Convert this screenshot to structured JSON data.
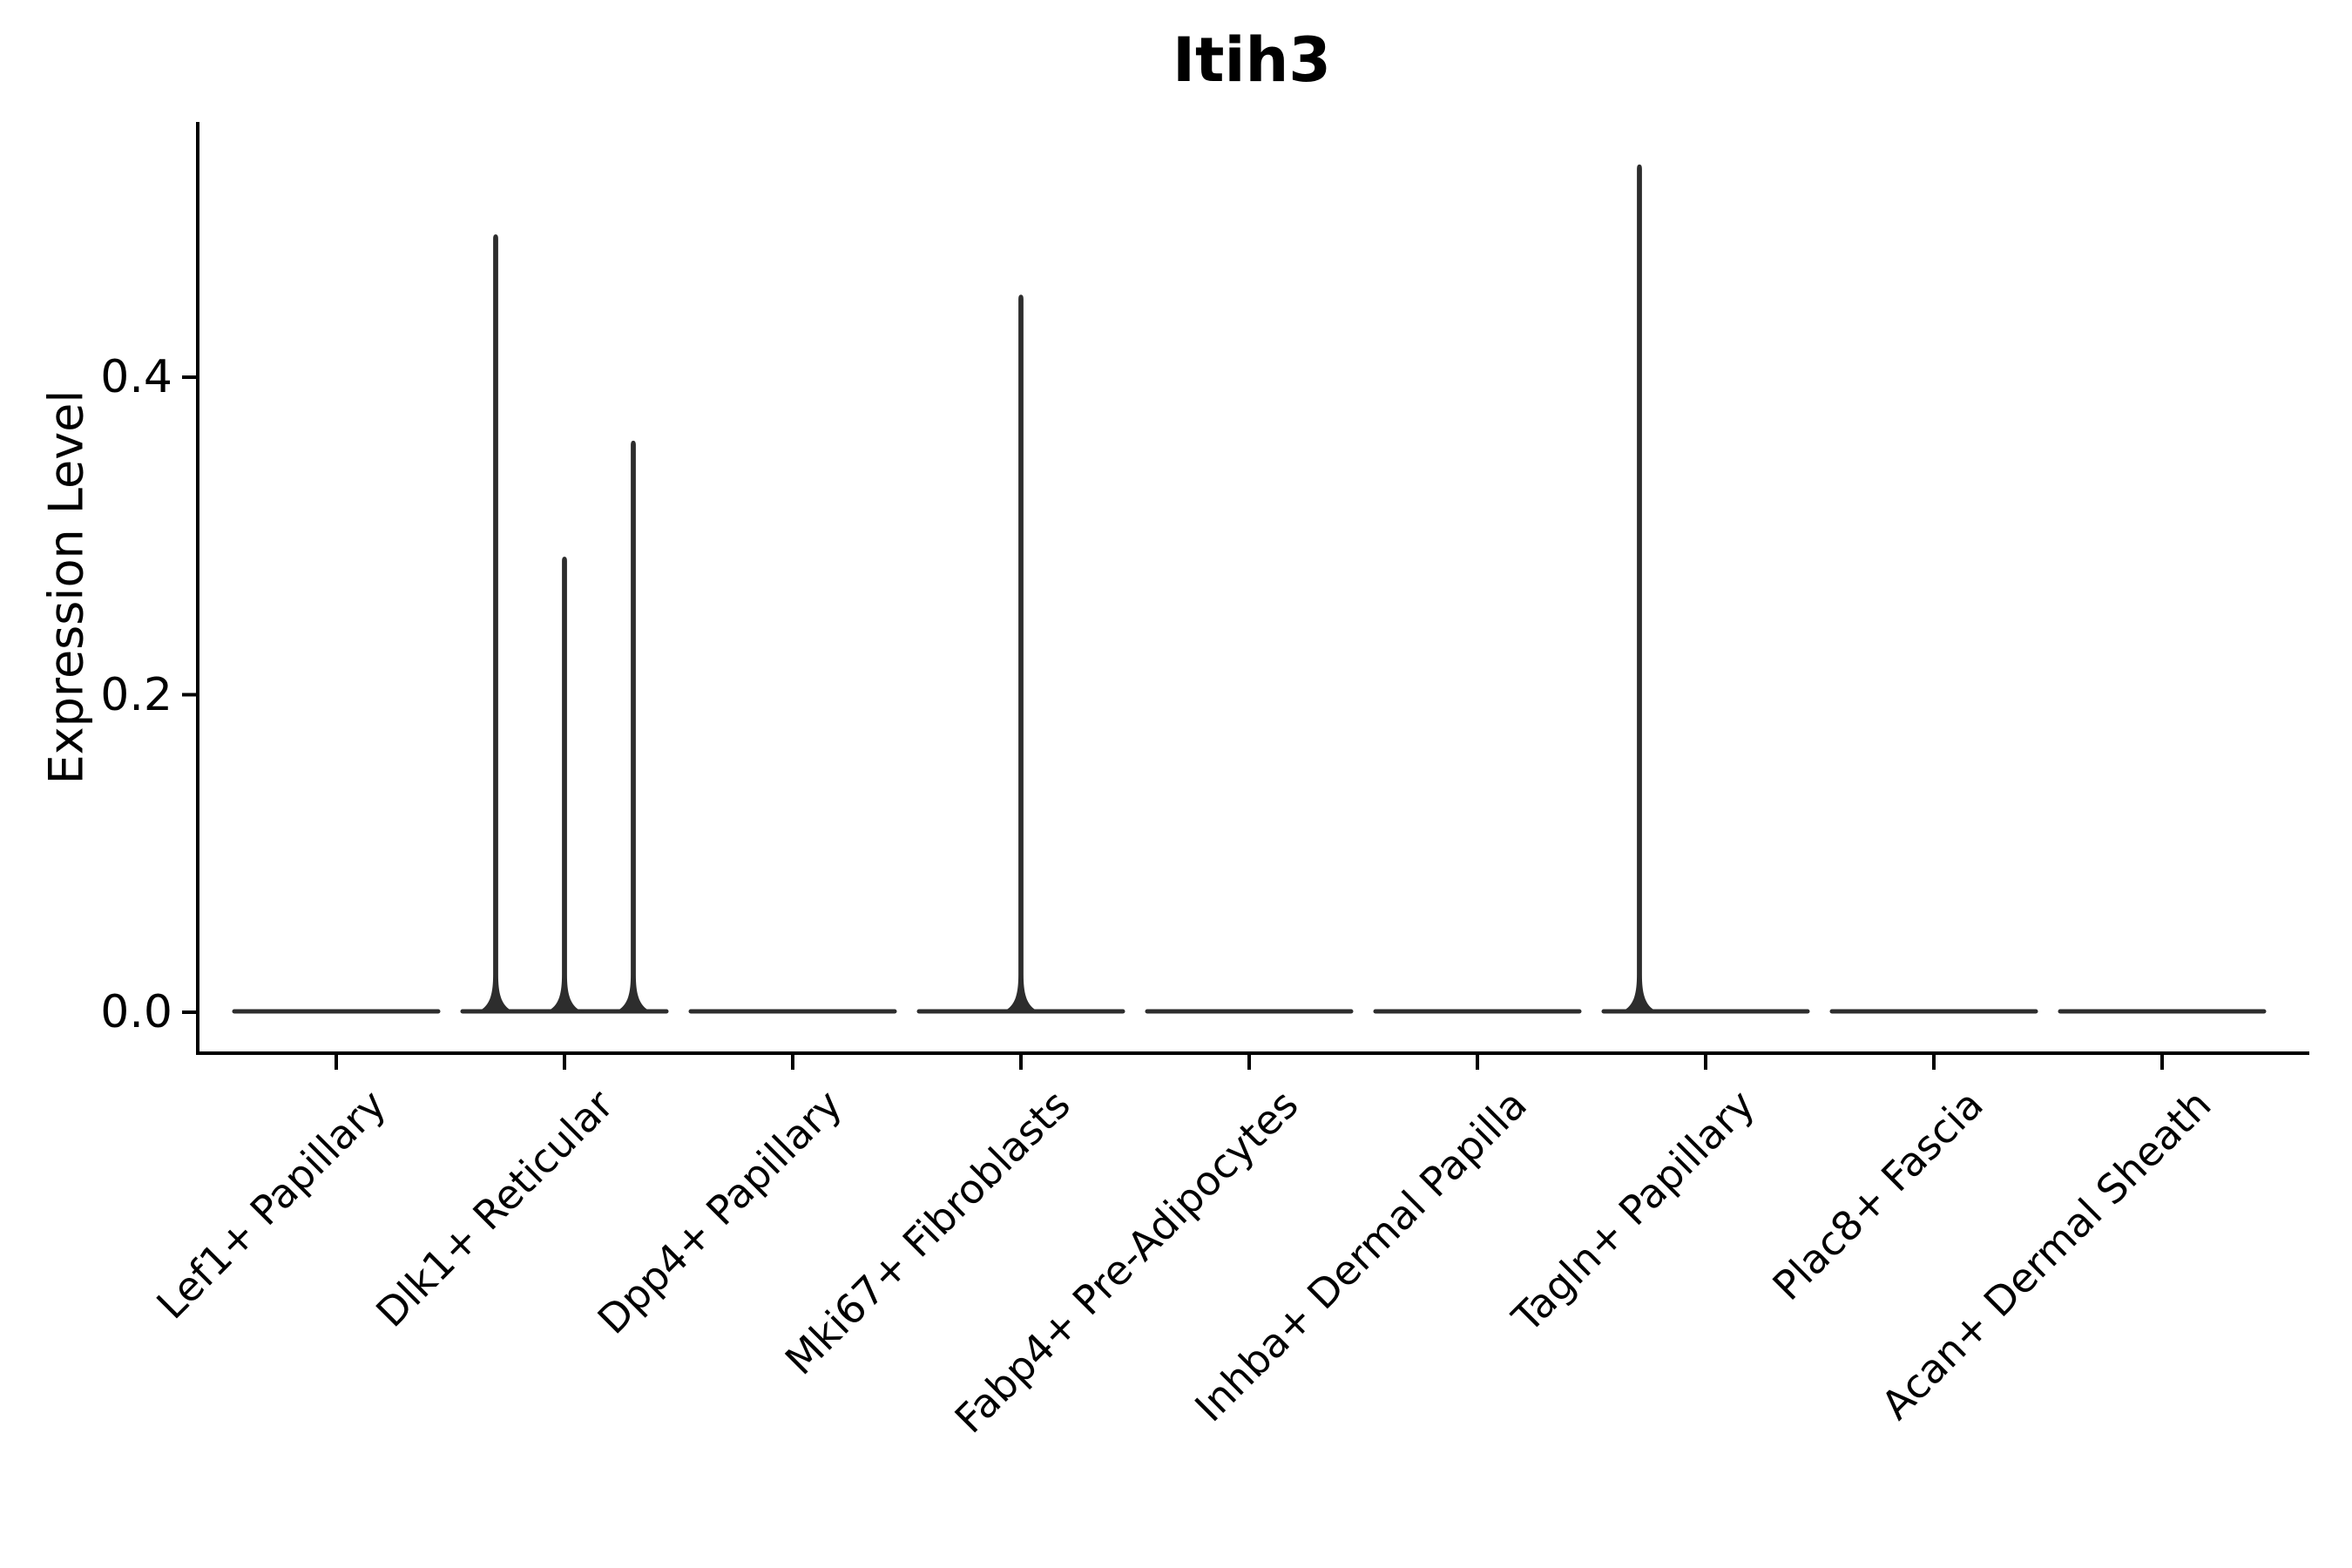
{
  "chart_data": {
    "type": "violin",
    "title": "Itih3",
    "ylabel": "Expression Level",
    "xlabel": "",
    "grid": false,
    "legend": "none",
    "ylim": [
      0,
      0.56
    ],
    "yticks": [
      {
        "label": "0.0",
        "value": 0.0
      },
      {
        "label": "0.2",
        "value": 0.2
      },
      {
        "label": "0.4",
        "value": 0.4
      }
    ],
    "baseline_value": 0.0,
    "categories": [
      {
        "label": "Lef1+ Papillary",
        "spikes": []
      },
      {
        "label": "Dlk1+ Reticular",
        "spikes": [
          {
            "offset": -79,
            "value": 0.49
          },
          {
            "offset": 0,
            "value": 0.287
          },
          {
            "offset": 79,
            "value": 0.36
          }
        ]
      },
      {
        "label": "Dpp4+ Papillary",
        "spikes": []
      },
      {
        "label": "Mki67+ Fibroblasts",
        "spikes": [
          {
            "offset": 0,
            "value": 0.452
          }
        ]
      },
      {
        "label": "Fabp4+ Pre-Adipocytes",
        "spikes": []
      },
      {
        "label": "Inhba+ Dermal Papilla",
        "spikes": []
      },
      {
        "label": "Tagln+ Papillary",
        "spikes": [
          {
            "offset": -76,
            "value": 0.534
          }
        ]
      },
      {
        "label": "Plac8+ Fascia",
        "spikes": []
      },
      {
        "label": "Acan+ Dermal Sheath",
        "spikes": []
      }
    ]
  },
  "colors": {
    "violin": "#2d2d2d",
    "axis": "#000000",
    "text": "#000000",
    "background": "#ffffff"
  }
}
